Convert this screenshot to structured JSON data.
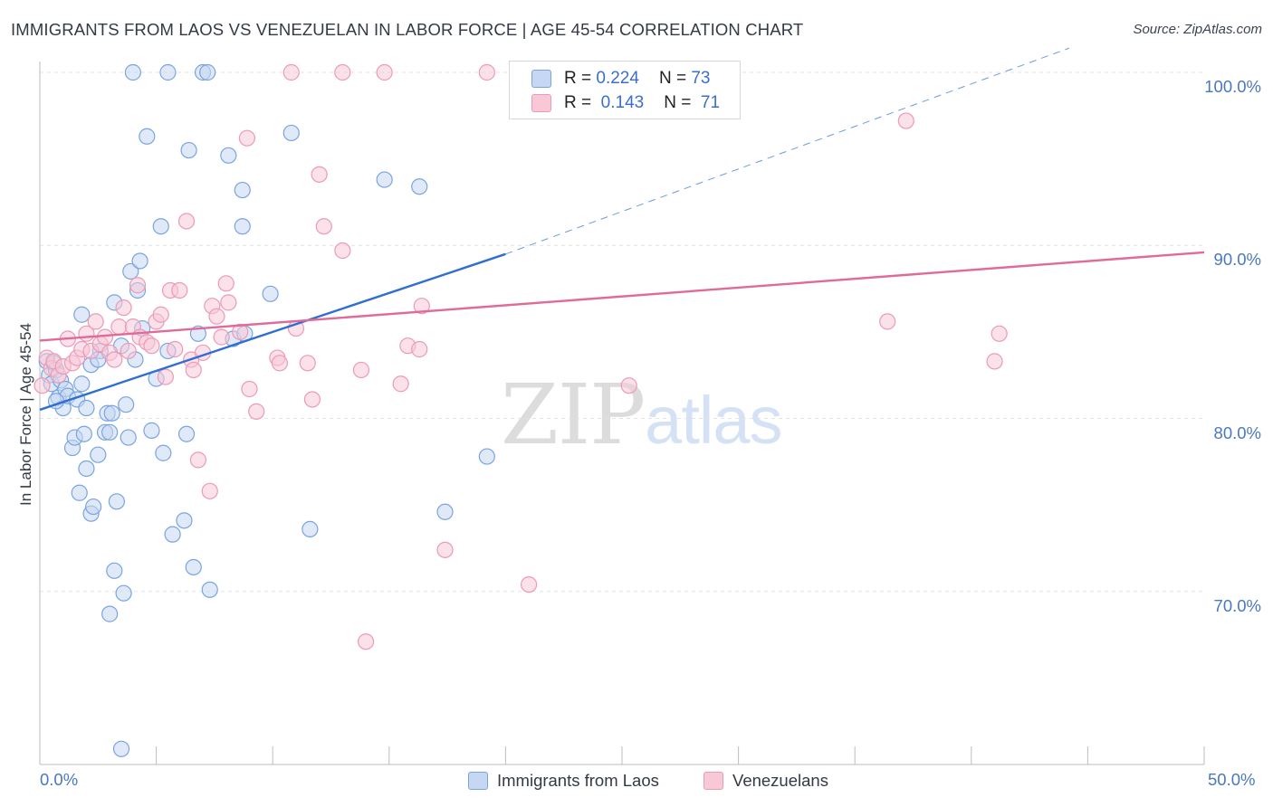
{
  "title": "IMMIGRANTS FROM LAOS VS VENEZUELAN IN LABOR FORCE | AGE 45-54 CORRELATION CHART",
  "source": "Source: ZipAtlas.com",
  "watermark": {
    "zip": "ZIP",
    "atlas": "atlas"
  },
  "legend": {
    "r_label": "R =",
    "n_label": "N =",
    "rows": [
      {
        "r": "0.224",
        "n": "73"
      },
      {
        "r": "0.143",
        "n": "71"
      }
    ]
  },
  "bottom_legend": [
    "Immigrants from Laos",
    "Venezuelans"
  ],
  "colors": {
    "laos_fill": "#c5d7f3",
    "laos_stroke": "#7aa4e0",
    "laos_line": "#2f6fd0",
    "ven_fill": "#f8c8d7",
    "ven_stroke": "#ec9ab6",
    "ven_line": "#e06a98",
    "grid": "#e3e3e3",
    "axis_text": "#4a78c2"
  },
  "chart_data": {
    "type": "scatter",
    "title": "IMMIGRANTS FROM LAOS VS VENEZUELAN IN LABOR FORCE | AGE 45-54 CORRELATION CHART",
    "xlabel": "",
    "ylabel": "In Labor Force | Age 45-54",
    "xlim": [
      0,
      50
    ],
    "ylim": [
      60,
      100
    ],
    "x_tick_labels": [
      "0.0%",
      "50.0%"
    ],
    "y_ticks": [
      70,
      80,
      90,
      100
    ],
    "y_tick_labels": [
      "70.0%",
      "80.0%",
      "90.0%",
      "100.0%"
    ],
    "grid": true,
    "legend_position": "top-center",
    "series": [
      {
        "name": "Immigrants from Laos",
        "r": 0.224,
        "n": 73,
        "trend": {
          "x0": 0.0,
          "y0": 80.5,
          "x1": 20.0,
          "y1": 89.5,
          "dashed_to_x": 44.2,
          "dashed_to_y": 101.4
        },
        "points": [
          [
            0.3,
            83.3
          ],
          [
            0.4,
            82.5
          ],
          [
            0.5,
            82.0
          ],
          [
            0.6,
            83.2
          ],
          [
            0.7,
            82.8
          ],
          [
            0.8,
            81.2
          ],
          [
            0.9,
            82.2
          ],
          [
            1.0,
            80.6
          ],
          [
            1.1,
            81.7
          ],
          [
            1.2,
            81.3
          ],
          [
            1.4,
            78.3
          ],
          [
            1.5,
            78.9
          ],
          [
            1.6,
            81.1
          ],
          [
            1.7,
            75.7
          ],
          [
            1.8,
            86.0
          ],
          [
            1.9,
            79.1
          ],
          [
            2.0,
            80.6
          ],
          [
            2.0,
            77.1
          ],
          [
            2.2,
            74.5
          ],
          [
            2.3,
            74.9
          ],
          [
            2.2,
            83.1
          ],
          [
            2.5,
            77.9
          ],
          [
            2.6,
            83.9
          ],
          [
            2.8,
            79.2
          ],
          [
            2.9,
            80.3
          ],
          [
            3.0,
            79.2
          ],
          [
            3.0,
            68.7
          ],
          [
            3.1,
            80.3
          ],
          [
            3.2,
            86.7
          ],
          [
            3.2,
            71.2
          ],
          [
            3.3,
            75.2
          ],
          [
            3.5,
            84.2
          ],
          [
            3.6,
            69.9
          ],
          [
            3.7,
            80.8
          ],
          [
            3.8,
            78.9
          ],
          [
            3.9,
            88.5
          ],
          [
            4.0,
            100.0
          ],
          [
            4.1,
            83.4
          ],
          [
            4.2,
            87.4
          ],
          [
            4.3,
            89.1
          ],
          [
            4.4,
            85.2
          ],
          [
            4.6,
            96.3
          ],
          [
            4.8,
            79.3
          ],
          [
            5.0,
            82.3
          ],
          [
            5.2,
            91.1
          ],
          [
            5.3,
            78.0
          ],
          [
            5.5,
            100.0
          ],
          [
            5.5,
            83.9
          ],
          [
            5.7,
            73.3
          ],
          [
            6.2,
            74.1
          ],
          [
            6.3,
            79.1
          ],
          [
            6.4,
            95.5
          ],
          [
            6.6,
            71.4
          ],
          [
            6.8,
            84.9
          ],
          [
            7.0,
            100.0
          ],
          [
            7.2,
            100.0
          ],
          [
            7.3,
            70.1
          ],
          [
            8.1,
            95.2
          ],
          [
            8.3,
            84.6
          ],
          [
            8.7,
            93.2
          ],
          [
            8.8,
            84.9
          ],
          [
            8.7,
            91.1
          ],
          [
            9.9,
            87.2
          ],
          [
            10.8,
            96.5
          ],
          [
            11.6,
            73.6
          ],
          [
            14.8,
            93.8
          ],
          [
            16.3,
            93.4
          ],
          [
            17.4,
            74.6
          ],
          [
            19.2,
            77.8
          ],
          [
            3.5,
            60.9
          ],
          [
            2.5,
            83.4
          ],
          [
            1.8,
            82.0
          ],
          [
            0.7,
            81.0
          ]
        ]
      },
      {
        "name": "Venezuelans",
        "r": 0.143,
        "n": 71,
        "trend": {
          "x0": 0.0,
          "y0": 84.5,
          "x1": 50.0,
          "y1": 89.6
        },
        "points": [
          [
            0.1,
            81.9
          ],
          [
            0.3,
            83.5
          ],
          [
            0.5,
            82.9
          ],
          [
            0.6,
            83.3
          ],
          [
            0.8,
            82.5
          ],
          [
            1.0,
            83.0
          ],
          [
            1.2,
            84.6
          ],
          [
            1.4,
            83.2
          ],
          [
            1.6,
            83.5
          ],
          [
            1.8,
            84.0
          ],
          [
            2.0,
            84.9
          ],
          [
            2.2,
            83.9
          ],
          [
            2.4,
            85.6
          ],
          [
            2.6,
            84.3
          ],
          [
            2.8,
            84.7
          ],
          [
            3.0,
            83.8
          ],
          [
            3.2,
            83.4
          ],
          [
            3.4,
            85.3
          ],
          [
            3.6,
            86.4
          ],
          [
            3.8,
            83.9
          ],
          [
            4.0,
            85.3
          ],
          [
            4.2,
            87.7
          ],
          [
            4.3,
            84.7
          ],
          [
            4.6,
            84.4
          ],
          [
            4.8,
            84.2
          ],
          [
            5.0,
            85.6
          ],
          [
            5.2,
            86.0
          ],
          [
            5.4,
            82.4
          ],
          [
            5.6,
            87.4
          ],
          [
            5.8,
            84.0
          ],
          [
            6.0,
            87.4
          ],
          [
            6.3,
            91.4
          ],
          [
            6.5,
            83.4
          ],
          [
            6.6,
            82.8
          ],
          [
            6.8,
            77.6
          ],
          [
            7.0,
            83.8
          ],
          [
            7.3,
            75.8
          ],
          [
            7.4,
            86.5
          ],
          [
            7.6,
            85.9
          ],
          [
            7.8,
            84.7
          ],
          [
            8.0,
            87.8
          ],
          [
            8.1,
            86.7
          ],
          [
            8.6,
            85.0
          ],
          [
            8.9,
            96.2
          ],
          [
            9.0,
            81.7
          ],
          [
            9.3,
            80.4
          ],
          [
            10.2,
            83.5
          ],
          [
            10.3,
            83.2
          ],
          [
            11.0,
            85.2
          ],
          [
            11.5,
            83.2
          ],
          [
            11.7,
            81.1
          ],
          [
            12.0,
            94.1
          ],
          [
            12.2,
            91.1
          ],
          [
            13.0,
            89.7
          ],
          [
            13.0,
            100.0
          ],
          [
            13.8,
            82.8
          ],
          [
            14.0,
            67.1
          ],
          [
            14.8,
            100.0
          ],
          [
            15.5,
            82.0
          ],
          [
            15.8,
            84.2
          ],
          [
            16.3,
            84.0
          ],
          [
            16.4,
            86.5
          ],
          [
            17.4,
            72.4
          ],
          [
            19.2,
            100.0
          ],
          [
            21.0,
            70.4
          ],
          [
            25.3,
            81.9
          ],
          [
            36.4,
            85.6
          ],
          [
            37.2,
            97.2
          ],
          [
            41.0,
            83.3
          ],
          [
            41.2,
            84.9
          ],
          [
            10.8,
            100.0
          ]
        ]
      }
    ]
  }
}
